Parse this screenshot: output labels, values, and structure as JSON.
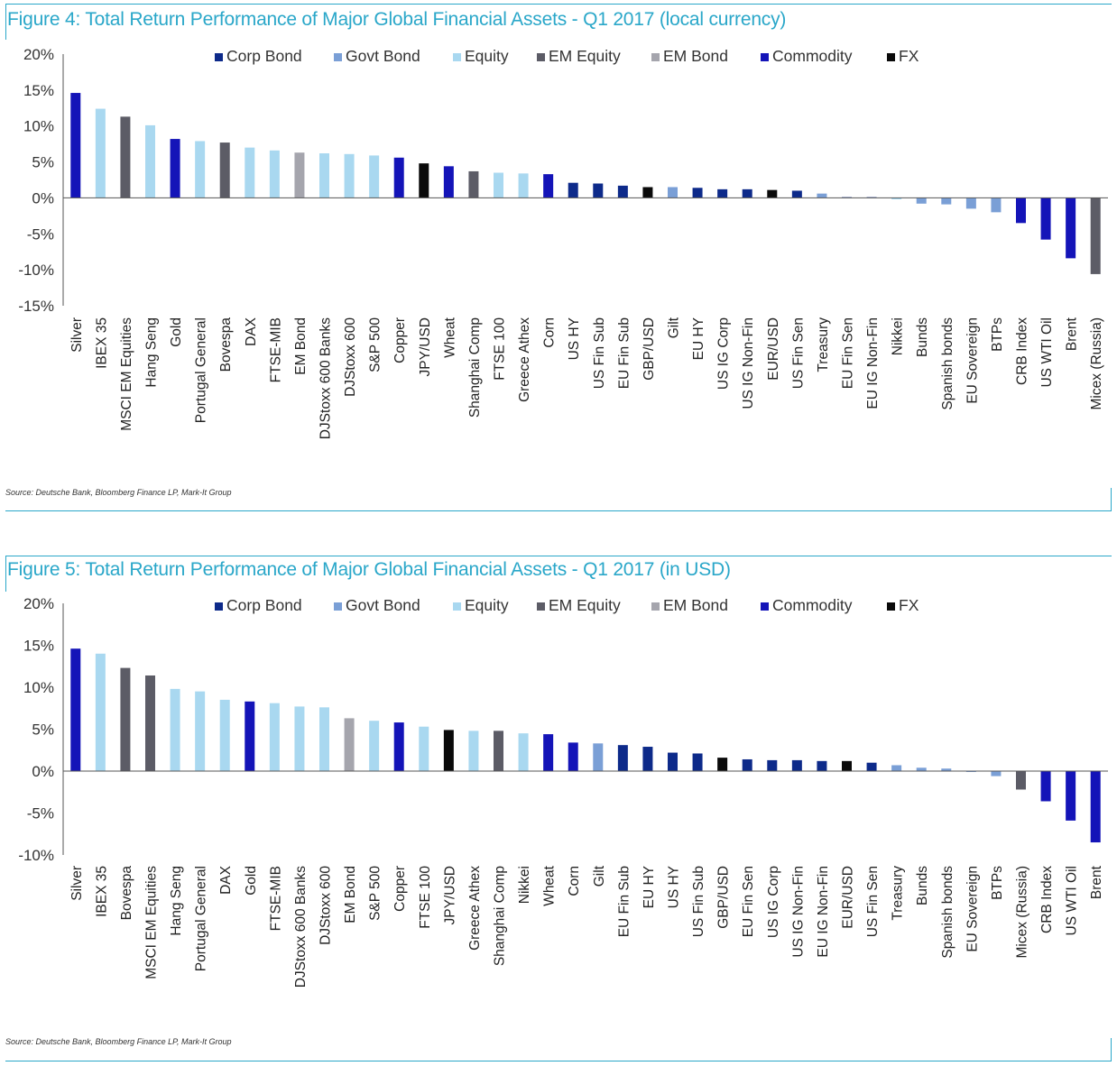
{
  "colors": {
    "title": "#2aa7c9",
    "Corp Bond": "#0d2a8a",
    "Govt Bond": "#7a9fd6",
    "Equity": "#a9d8f0",
    "EM Equity": "#5c5c66",
    "EM Bond": "#a5a5ad",
    "Commodity": "#1414b8",
    "FX": "#0a0a0a"
  },
  "figures": [
    {
      "title": "Figure 4: Total Return Performance of Major Global Financial Assets - Q1 2017 (local currency)",
      "source": "Source: Deutsche Bank, Bloomberg Finance LP, Mark-It Group",
      "legend": [
        "Corp Bond",
        "Govt Bond",
        "Equity",
        "EM Equity",
        "EM Bond",
        "Commodity",
        "FX"
      ]
    },
    {
      "title": "Figure 5: Total Return Performance of Major Global Financial Assets - Q1 2017 (in USD)",
      "source": "Source: Deutsche Bank, Bloomberg Finance LP, Mark-It Group",
      "legend": [
        "Corp Bond",
        "Govt Bond",
        "Equity",
        "EM Equity",
        "EM Bond",
        "Commodity",
        "FX"
      ]
    }
  ],
  "chart_data": [
    {
      "type": "bar",
      "title": "Figure 4: Total Return Performance of Major Global Financial Assets - Q1 2017 (local currency)",
      "xlabel": "",
      "ylabel": "",
      "ylim": [
        -15,
        20
      ],
      "yticks": [
        20,
        15,
        10,
        5,
        0,
        -5,
        -10,
        -15
      ],
      "ytick_labels": [
        "20%",
        "15%",
        "10%",
        "5%",
        "0%",
        "-5%",
        "-10%",
        "-15%"
      ],
      "legend_position": "top",
      "categories": [
        "Silver",
        "IBEX 35",
        "MSCI EM Equities",
        "Hang Seng",
        "Gold",
        "Portugal General",
        "Bovespa",
        "DAX",
        "FTSE-MIB",
        "EM Bond",
        "DJStoxx 600 Banks",
        "DJStoxx 600",
        "S&P 500",
        "Copper",
        "JPY/USD",
        "Wheat",
        "Shanghai Comp",
        "FTSE 100",
        "Greece Athex",
        "Corn",
        "US HY",
        "US Fin Sub",
        "EU Fin Sub",
        "GBP/USD",
        "Gilt",
        "EU HY",
        "US IG Corp",
        "US IG Non-Fin",
        "EUR/USD",
        "US Fin Sen",
        "Treasury",
        "EU Fin Sen",
        "EU IG Non-Fin",
        "Nikkei",
        "Bunds",
        "Spanish bonds",
        "EU Sovereign",
        "BTPs",
        "CRB Index",
        "US WTI Oil",
        "Brent",
        "Micex (Russia)"
      ],
      "values": [
        14.6,
        12.4,
        11.3,
        10.1,
        8.2,
        7.9,
        7.7,
        7.0,
        6.6,
        6.3,
        6.2,
        6.1,
        5.9,
        5.6,
        4.8,
        4.4,
        3.7,
        3.5,
        3.4,
        3.3,
        2.1,
        2.0,
        1.7,
        1.5,
        1.5,
        1.4,
        1.2,
        1.2,
        1.1,
        1.0,
        0.6,
        0.1,
        0.1,
        -0.2,
        -0.8,
        -0.9,
        -1.5,
        -2.0,
        -3.5,
        -5.8,
        -8.4,
        -10.6
      ],
      "groups": [
        "Commodity",
        "Equity",
        "EM Equity",
        "Equity",
        "Commodity",
        "Equity",
        "EM Equity",
        "Equity",
        "Equity",
        "EM Bond",
        "Equity",
        "Equity",
        "Equity",
        "Commodity",
        "FX",
        "Commodity",
        "EM Equity",
        "Equity",
        "Equity",
        "Commodity",
        "Corp Bond",
        "Corp Bond",
        "Corp Bond",
        "FX",
        "Govt Bond",
        "Corp Bond",
        "Corp Bond",
        "Corp Bond",
        "FX",
        "Corp Bond",
        "Govt Bond",
        "Corp Bond",
        "Corp Bond",
        "Equity",
        "Govt Bond",
        "Govt Bond",
        "Govt Bond",
        "Govt Bond",
        "Commodity",
        "Commodity",
        "Commodity",
        "EM Equity"
      ]
    },
    {
      "type": "bar",
      "title": "Figure 5: Total Return Performance of Major Global Financial Assets - Q1 2017 (in USD)",
      "xlabel": "",
      "ylabel": "",
      "ylim": [
        -10,
        20
      ],
      "yticks": [
        20,
        15,
        10,
        5,
        0,
        -5,
        -10
      ],
      "ytick_labels": [
        "20%",
        "15%",
        "10%",
        "5%",
        "0%",
        "-5%",
        "-10%"
      ],
      "legend_position": "top",
      "categories": [
        "Silver",
        "IBEX 35",
        "Bovespa",
        "MSCI EM Equities",
        "Hang Seng",
        "Portugal General",
        "DAX",
        "Gold",
        "FTSE-MIB",
        "DJStoxx 600 Banks",
        "DJStoxx 600",
        "EM Bond",
        "S&P 500",
        "Copper",
        "FTSE 100",
        "JPY/USD",
        "Greece Athex",
        "Shanghai Comp",
        "Nikkei",
        "Wheat",
        "Corn",
        "Gilt",
        "EU Fin Sub",
        "EU HY",
        "US HY",
        "US Fin Sub",
        "GBP/USD",
        "EU Fin Sen",
        "US IG Corp",
        "US IG Non-Fin",
        "EU IG Non-Fin",
        "EUR/USD",
        "US Fin Sen",
        "Treasury",
        "Bunds",
        "Spanish bonds",
        "EU Sovereign",
        "BTPs",
        "Micex (Russia)",
        "CRB Index",
        "US WTI Oil",
        "Brent"
      ],
      "values": [
        14.6,
        14.0,
        12.3,
        11.4,
        9.8,
        9.5,
        8.5,
        8.3,
        8.1,
        7.7,
        7.6,
        6.3,
        6.0,
        5.8,
        5.3,
        4.9,
        4.8,
        4.8,
        4.5,
        4.4,
        3.4,
        3.3,
        3.1,
        2.9,
        2.2,
        2.1,
        1.6,
        1.4,
        1.3,
        1.3,
        1.2,
        1.2,
        1.0,
        0.7,
        0.4,
        0.3,
        -0.1,
        -0.6,
        -2.2,
        -3.6,
        -5.9,
        -8.5
      ],
      "groups": [
        "Commodity",
        "Equity",
        "EM Equity",
        "EM Equity",
        "Equity",
        "Equity",
        "Equity",
        "Commodity",
        "Equity",
        "Equity",
        "Equity",
        "EM Bond",
        "Equity",
        "Commodity",
        "Equity",
        "FX",
        "Equity",
        "EM Equity",
        "Equity",
        "Commodity",
        "Commodity",
        "Govt Bond",
        "Corp Bond",
        "Corp Bond",
        "Corp Bond",
        "Corp Bond",
        "FX",
        "Corp Bond",
        "Corp Bond",
        "Corp Bond",
        "Corp Bond",
        "FX",
        "Corp Bond",
        "Govt Bond",
        "Govt Bond",
        "Govt Bond",
        "Govt Bond",
        "Govt Bond",
        "EM Equity",
        "Commodity",
        "Commodity",
        "Commodity"
      ]
    }
  ]
}
